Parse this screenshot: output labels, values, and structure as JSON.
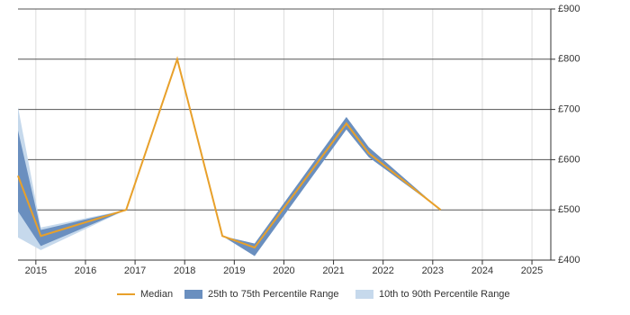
{
  "chart_data": {
    "type": "line",
    "x": [
      2014.64,
      2015.1,
      2016.82,
      2017.85,
      2018.76,
      2019.41,
      2021.26,
      2021.71,
      2023.16
    ],
    "series": [
      {
        "name": "10th to 90th Percentile Range",
        "kind": "band",
        "color": "#c6d9ec",
        "high": [
          705,
          465,
          500,
          800,
          448,
          433,
          685,
          625,
          500
        ],
        "low": [
          445,
          420,
          500,
          800,
          448,
          408,
          660,
          605,
          500
        ]
      },
      {
        "name": "25th to 75th Percentile Range",
        "kind": "band",
        "color": "#6a8fbf",
        "high": [
          658,
          460,
          500,
          800,
          448,
          433,
          685,
          625,
          500
        ],
        "low": [
          497,
          428,
          500,
          800,
          448,
          408,
          660,
          605,
          500
        ]
      },
      {
        "name": "Median",
        "kind": "line",
        "color": "#e8a02a",
        "values": [
          568,
          448,
          500,
          800,
          448,
          425,
          672,
          613,
          500
        ]
      }
    ],
    "legend_order": [
      2,
      1,
      0
    ],
    "xlim": [
      2014.64,
      2025.38
    ],
    "xticks": [
      2015,
      2016,
      2017,
      2018,
      2019,
      2020,
      2021,
      2022,
      2023,
      2024,
      2025
    ],
    "ylim": [
      400,
      900
    ],
    "yticks": [
      {
        "value": 400,
        "label": "£400"
      },
      {
        "value": 500,
        "label": "£500"
      },
      {
        "value": 600,
        "label": "£600"
      },
      {
        "value": 700,
        "label": "£700"
      },
      {
        "value": 800,
        "label": "£800"
      },
      {
        "value": 900,
        "label": "£900"
      }
    ],
    "grid": true
  }
}
